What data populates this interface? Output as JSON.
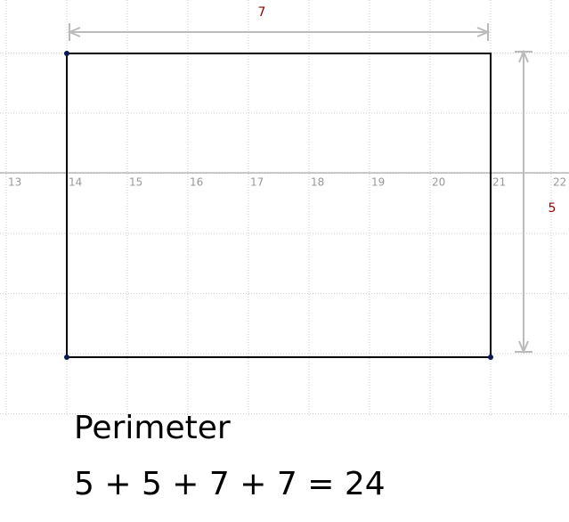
{
  "axis": {
    "ticks": [
      13,
      14,
      15,
      16,
      17,
      18,
      19,
      20,
      21,
      22
    ]
  },
  "dimensions": {
    "width": "7",
    "height": "5"
  },
  "caption": {
    "title": "Perimeter",
    "equation": "5 + 5 + 7 + 7 = 24"
  }
}
